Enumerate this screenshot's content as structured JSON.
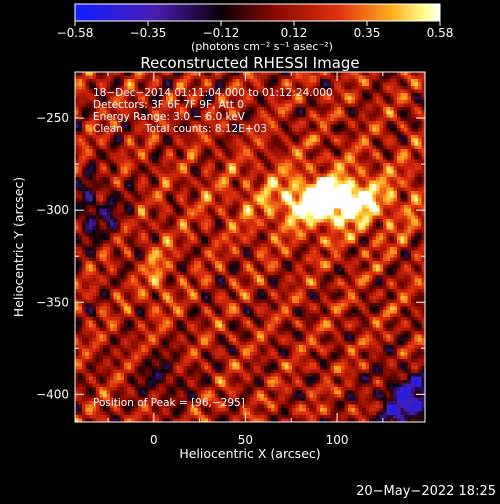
{
  "chart_data": {
    "type": "heatmap",
    "title": "Reconstructed RHESSI Image",
    "xlabel": "Heliocentric X (arcsec)",
    "ylabel": "Heliocentric Y (arcsec)",
    "xlim": [
      -43,
      148
    ],
    "ylim": [
      -415,
      -225
    ],
    "xticks": [
      0,
      50,
      100
    ],
    "yticks": [
      -250,
      -300,
      -350,
      -400
    ],
    "colorbar": {
      "label": "(photons cm⁻² s⁻¹ asec⁻²)",
      "range": [
        -0.58,
        0.58
      ],
      "ticks": [
        "−0.58",
        "−0.35",
        "−0.12",
        "0.12",
        "0.35",
        "0.58"
      ],
      "colors": [
        "#1a2bff",
        "#5a1aa0",
        "#000000",
        "#c01800",
        "#ff8a10",
        "#ffff80",
        "#ffffff"
      ]
    },
    "annotations": {
      "date_range": "18−Dec−2014 01:11:04.000 to 01:12:24.000",
      "detectors": "Detectors: 3F 6F 7F 9F, Att 0",
      "energy": "Energy Range: 3.0 − 6.0 keV",
      "method": "Clean",
      "counts": "Total counts: 8.12E+03",
      "peak": "Position of Peak = [96,−295]"
    },
    "peak": {
      "x": 96,
      "y": -295,
      "value": 0.58
    },
    "secondary_source": {
      "x": 2,
      "y": -335
    },
    "background_level": 0.12
  },
  "timestamp": "20−May−2022 18:25"
}
